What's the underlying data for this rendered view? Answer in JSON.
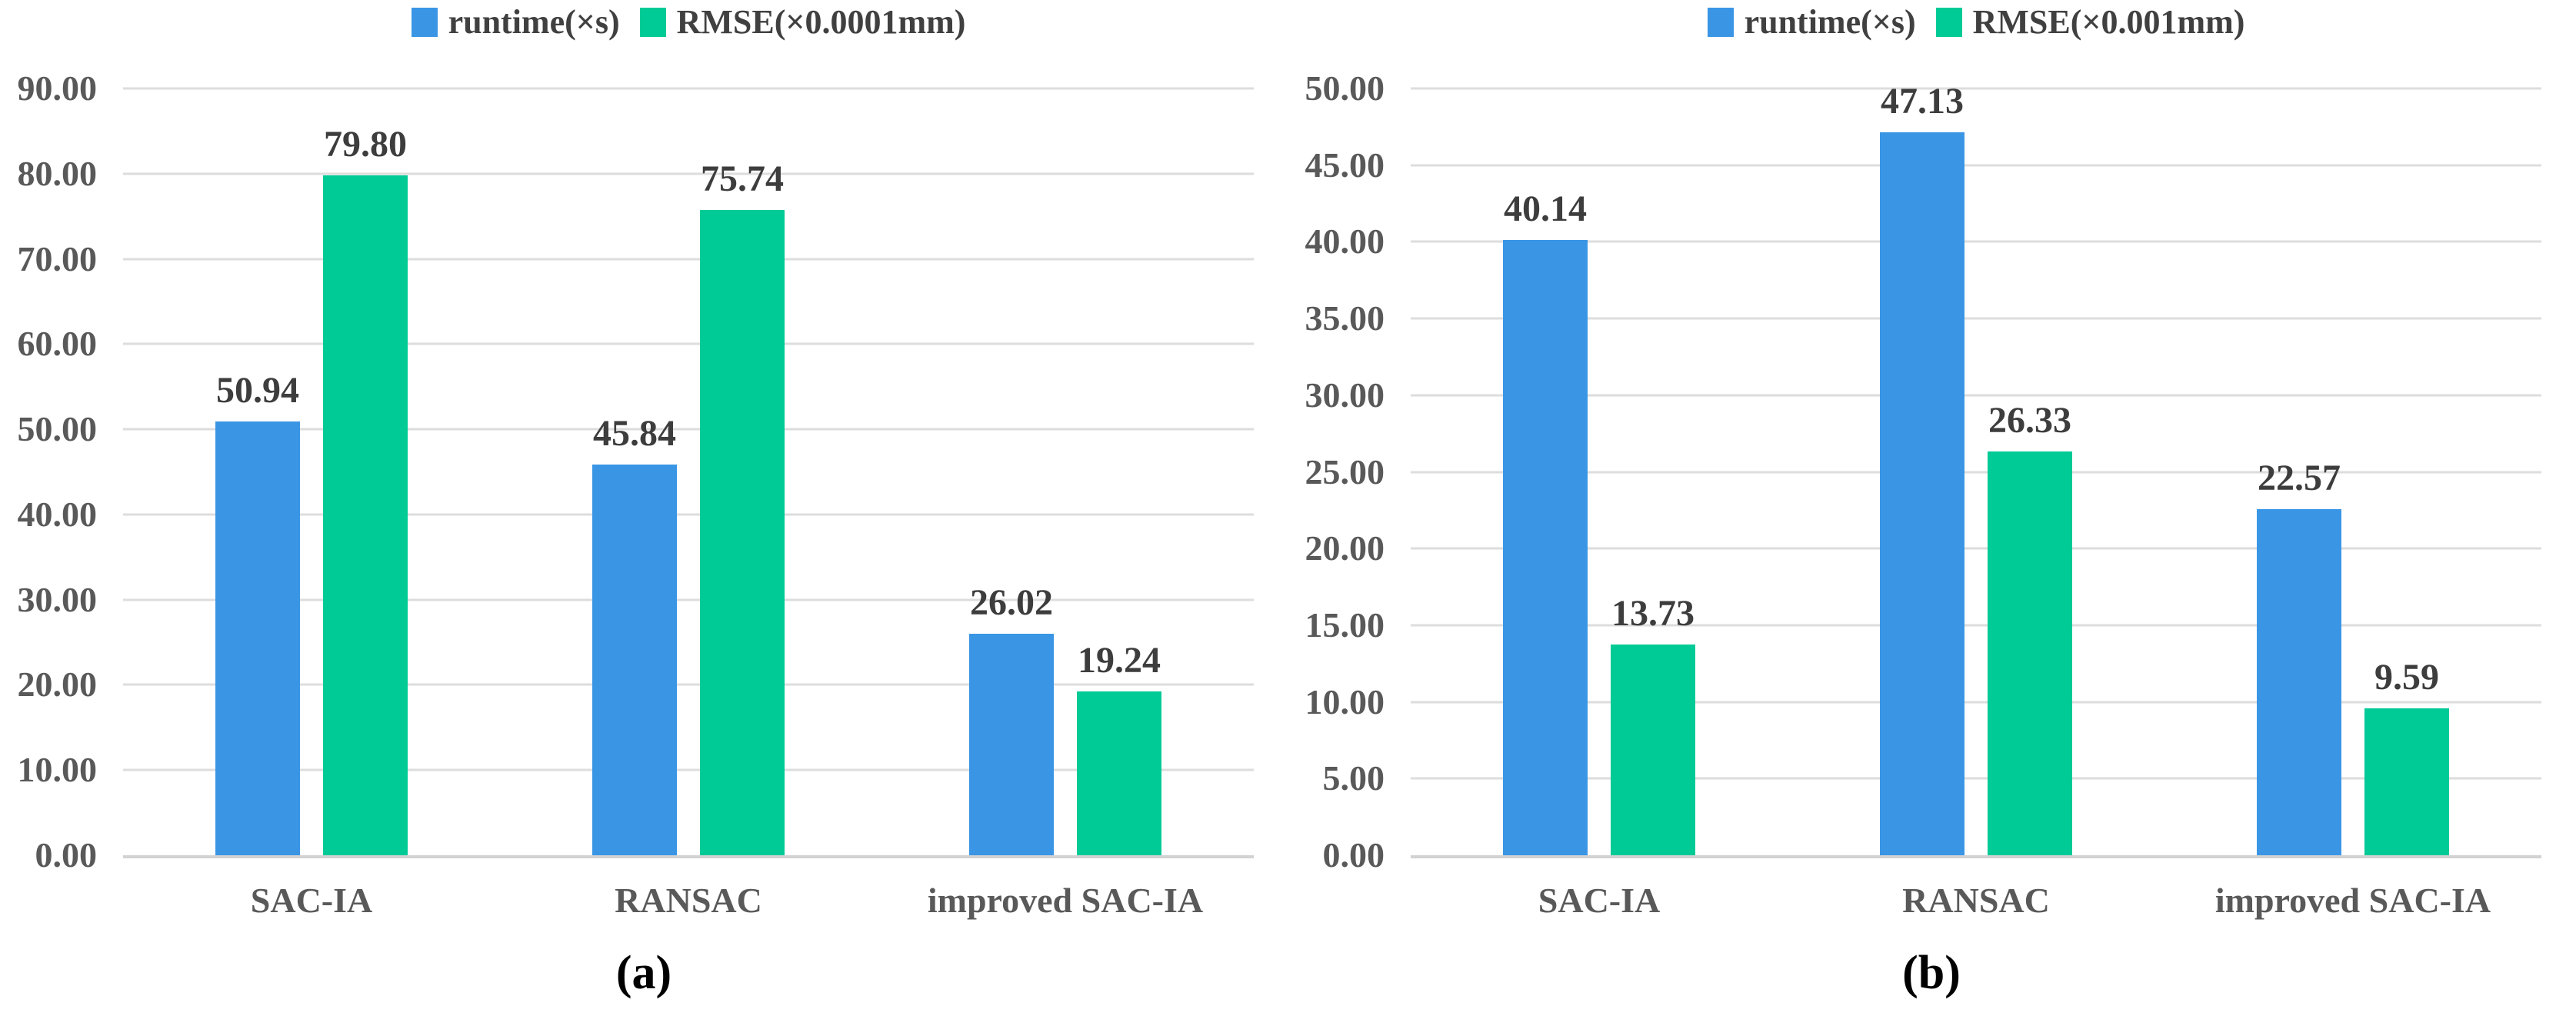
{
  "figure": {
    "description": "two grouped bar charts comparing registration algorithms",
    "panel_captions": [
      "(a)",
      "(b)"
    ]
  },
  "chart_data": [
    {
      "type": "bar",
      "caption": "(a)",
      "legend_position": "top",
      "grid": true,
      "categories": [
        "SAC-IA",
        "RANSAC",
        "improved SAC-IA"
      ],
      "series": [
        {
          "name": "runtime(×s)",
          "color": "#3A96E5",
          "values": [
            50.94,
            45.84,
            26.02
          ]
        },
        {
          "name": "RMSE(×0.0001mm)",
          "color": "#00CA96",
          "values": [
            79.8,
            75.74,
            19.24
          ]
        }
      ],
      "ylim": [
        0,
        90
      ],
      "ytick_step": 10,
      "ytick_format": "2dp",
      "xlabel": "",
      "ylabel": ""
    },
    {
      "type": "bar",
      "caption": "(b)",
      "legend_position": "top",
      "grid": true,
      "categories": [
        "SAC-IA",
        "RANSAC",
        "improved SAC-IA"
      ],
      "series": [
        {
          "name": "runtime(×s)",
          "color": "#3A96E5",
          "values": [
            40.14,
            47.13,
            22.57
          ]
        },
        {
          "name": "RMSE(×0.001mm)",
          "color": "#00CA96",
          "values": [
            13.73,
            26.33,
            9.59
          ]
        }
      ],
      "ylim": [
        0,
        50
      ],
      "ytick_step": 5,
      "ytick_format": "2dp",
      "xlabel": "",
      "ylabel": ""
    }
  ],
  "colors": {
    "runtime_bar": "#3A96E5",
    "rmse_bar": "#00CA96",
    "gridline": "#DDDDDD",
    "axis_line": "#D2D2D2",
    "axis_label": "#595959",
    "value_label": "#3D3D3D",
    "legend_label": "#404040",
    "background": "#FFFFFF"
  }
}
